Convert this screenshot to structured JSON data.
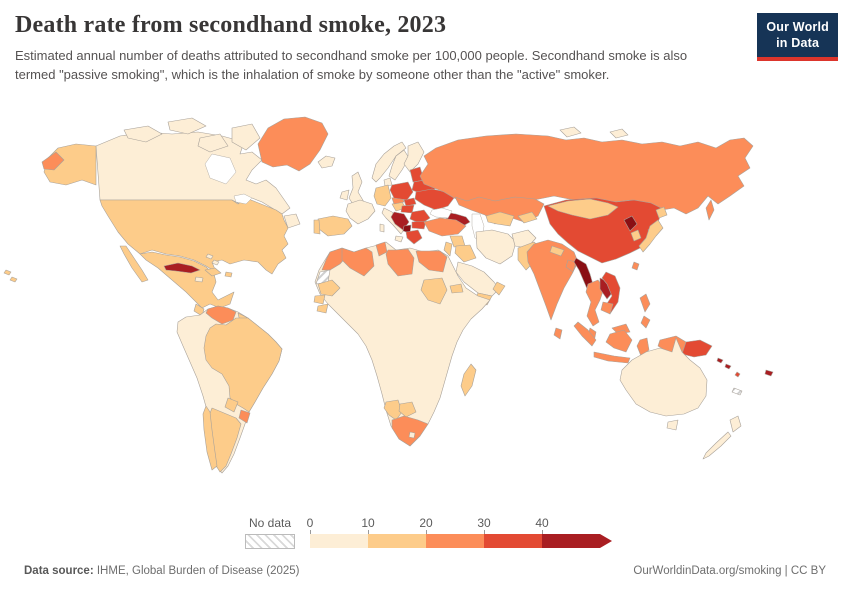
{
  "header": {
    "title": "Death rate from secondhand smoke, 2023",
    "subtitle": "Estimated annual number of deaths attributed to secondhand smoke per 100,000 people. Secondhand smoke is also termed \"passive smoking\", which is the inhalation of smoke by someone other than the \"active\" smoker."
  },
  "logo": {
    "line1": "Our World",
    "line2": "in Data",
    "bg_color": "#163456",
    "accent_color": "#dc352c"
  },
  "footer": {
    "source_label": "Data source:",
    "source_rest": " IHME, Global Burden of Disease (2025)",
    "link_text": "OurWorldinData.org/smoking",
    "license_text": " | CC BY"
  },
  "chart_data": {
    "type": "choropleth",
    "title": "Death rate from secondhand smoke, 2023",
    "unit": "deaths per 100,000 people",
    "year": "2023",
    "legend": {
      "no_data_label": "No data",
      "ticks": [
        "0",
        "10",
        "20",
        "30",
        "40"
      ],
      "bins": [
        {
          "tick": "0",
          "range": "0-10",
          "color": "#fdeed6"
        },
        {
          "tick": "10",
          "range": "10-20",
          "color": "#fdcc8a"
        },
        {
          "tick": "20",
          "range": "20-30",
          "color": "#fc8d59"
        },
        {
          "tick": "30",
          "range": "30-40",
          "color": "#e34a33"
        },
        {
          "tick": "40",
          "range": "40+",
          "color": "#a91e22"
        }
      ],
      "open_ended_arrow": true
    },
    "bin_colors": {
      "0-10": "#fdeed6",
      "10-20": "#fdcc8a",
      "20-30": "#fc8d59",
      "30-40": "#e34a33",
      "40+": "#a91e22",
      "40+dark": "#8a0f14",
      "no-data": "hatch"
    },
    "regions": {
      "greenland": "20-30",
      "canada": "0-10",
      "canada-arctic": "0-10",
      "newfoundland": "0-10",
      "alaska": "10-20",
      "usa": "10-20",
      "hawaii": "10-20",
      "mexico": "10-20",
      "baja-mexico": "10-20",
      "guatemala": "10-20",
      "central-america": "0-10",
      "cuba": "40+",
      "hispaniola": "10-20",
      "jamaica": "0-10",
      "puerto-rico": "10-20",
      "bahamas": "0-10",
      "venezuela": "20-30",
      "guyanas": "10-20",
      "french-guiana": "no-data",
      "south-america-andean": "0-10",
      "brazil": "10-20",
      "paraguay": "10-20",
      "uruguay": "20-30",
      "argentina": "10-20",
      "chile": "10-20",
      "iceland": "0-10",
      "united-kingdom": "0-10",
      "ireland": "0-10",
      "norway": "0-10",
      "sweden": "0-10",
      "finland": "0-10",
      "denmark": "0-10",
      "france": "0-10",
      "spain": "10-20",
      "portugal": "10-20",
      "germany": "10-20",
      "italy": "0-10",
      "austria": "10-20",
      "czechia": "20-30",
      "slovakia": "30-40",
      "poland": "30-40",
      "baltics": "30-40",
      "belarus": "30-40",
      "ukraine": "30-40",
      "hungary": "30-40",
      "romania": "30-40",
      "balkans": "40+",
      "north-macedonia": "40+dark",
      "bulgaria": "30-40",
      "greece": "30-40",
      "russia": "20-30",
      "arctic-islands-ru": "0-10",
      "kazakhstan": "20-30",
      "caucasus": "40+",
      "turkey": "20-30",
      "syria": "10-20",
      "iraq": "10-20",
      "israel-jordan": "10-20",
      "iran": "0-10",
      "saudi-arabia": "0-10",
      "yemen": "10-20",
      "oman": "10-20",
      "afghanistan": "0-10",
      "turkmenistan": "10-20",
      "kyrgyzstan-tajikistan": "10-20",
      "pakistan": "10-20",
      "india": "20-30",
      "nepal": "10-20",
      "bangladesh": "20-30",
      "sri-lanka": "20-30",
      "china": "30-40",
      "mongolia": "10-20",
      "north-korea": "40+dark",
      "south-korea": "10-20",
      "japan": "10-20",
      "taiwan": "20-30",
      "myanmar": "40+dark",
      "thailand": "20-30",
      "laos": "40+",
      "vietnam": "30-40",
      "cambodia": "20-30",
      "malaysia": "20-30",
      "indonesia": "20-30",
      "philippines": "20-30",
      "papua-new-guinea": "30-40",
      "solomon-islands": "40+",
      "vanuatu": "30-40",
      "fiji": "40+",
      "new-caledonia": "no-data",
      "australia": "0-10",
      "new-zealand": "0-10",
      "sub-saharan-africa": "0-10",
      "morocco": "20-30",
      "algeria": "20-30",
      "tunisia": "20-30",
      "libya": "20-30",
      "egypt": "20-30",
      "western-sahara": "no-data",
      "mauritania": "10-20",
      "senegal": "10-20",
      "guinea": "10-20",
      "sudan": "10-20",
      "eritrea": "10-20",
      "namibia": "10-20",
      "botswana": "10-20",
      "south-africa": "20-30",
      "lesotho": "0-10",
      "madagascar": "10-20"
    }
  }
}
